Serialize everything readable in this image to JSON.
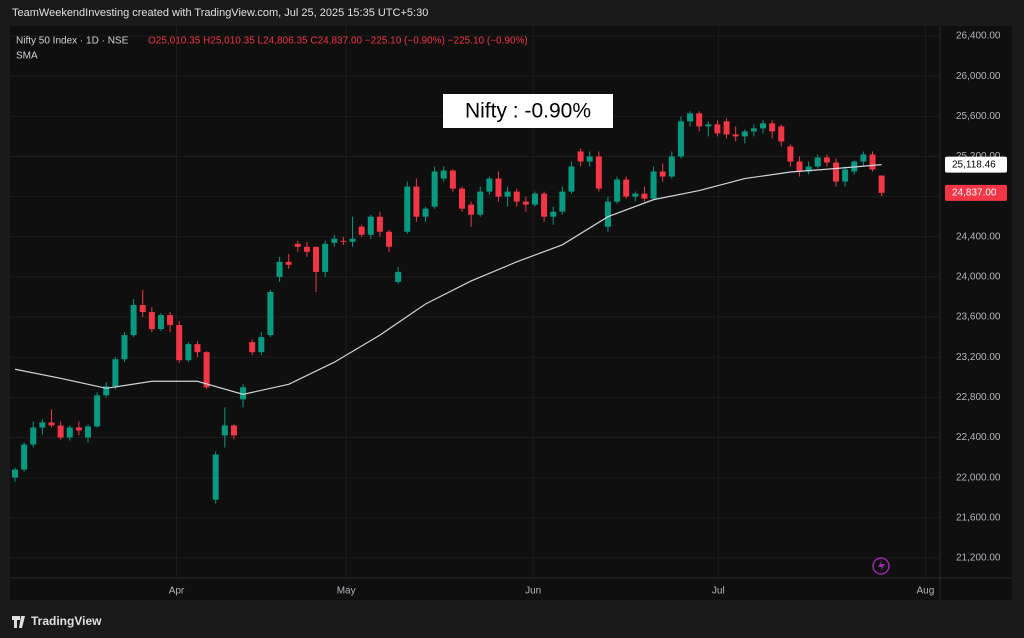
{
  "chart_data": {
    "type": "candlestick",
    "header": "TeamWeekendInvesting created with TradingView.com, Jul 25, 2025 15:35 UTC+5:30",
    "symbol": "Nifty 50 Index · 1D · NSE",
    "quote": "O25,010.35  H25,010.35  L24,806.35  C24,837.00  −225.10 (−0.90%)  −225.10 (−0.90%)",
    "indicator_name": "SMA",
    "annotation": "Nifty : -0.90%",
    "brand": "TradingView",
    "up_color": "#089981",
    "down_color": "#f23645",
    "open": [
      22000,
      22080,
      22330,
      22500,
      22550,
      22520,
      22400,
      22500,
      22400,
      22510,
      22820,
      22910,
      23180,
      23420,
      23720,
      23650,
      23480,
      23620,
      23520,
      23170,
      23330,
      23250,
      21780,
      22420,
      22520,
      22780,
      23350,
      23250,
      23420,
      24000,
      24150,
      24330,
      24300,
      24300,
      24050,
      24340,
      24360,
      24350,
      24500,
      24420,
      24600,
      24450,
      23950,
      24450,
      24900,
      24600,
      24700,
      24980,
      25060,
      24880,
      24720,
      24620,
      24850,
      24980,
      24800,
      24850,
      24750,
      24720,
      24830,
      24600,
      24650,
      24850,
      25250,
      25150,
      25200,
      24500,
      24750,
      24970,
      24800,
      24830,
      24780,
      25050,
      25000,
      25200,
      25550,
      25630,
      25500,
      25520,
      25550,
      25420,
      25400,
      25450,
      25480,
      25530,
      25500,
      25300,
      25150,
      25050,
      25100,
      25190,
      25140,
      24950,
      25050,
      25150,
      25220,
      25010
    ],
    "high": [
      22100,
      22350,
      22560,
      22580,
      22680,
      22560,
      22520,
      22560,
      22530,
      22850,
      22950,
      23200,
      23450,
      23780,
      23870,
      23700,
      23640,
      23650,
      23560,
      23350,
      23360,
      23260,
      22260,
      22700,
      22530,
      22930,
      23380,
      23450,
      23870,
      24200,
      24230,
      24360,
      24350,
      24300,
      24360,
      24420,
      24400,
      24600,
      24520,
      24620,
      24650,
      24470,
      24100,
      24950,
      24980,
      24700,
      25100,
      25100,
      25070,
      24900,
      24750,
      24900,
      25000,
      25050,
      24900,
      24880,
      24800,
      24850,
      24850,
      24700,
      24900,
      25150,
      25280,
      25250,
      25250,
      24800,
      25000,
      25000,
      24850,
      24900,
      25100,
      25130,
      25250,
      25600,
      25650,
      25650,
      25550,
      25560,
      25580,
      25500,
      25470,
      25520,
      25560,
      25560,
      25520,
      25320,
      25200,
      25150,
      25220,
      25220,
      25180,
      25100,
      25160,
      25250,
      25250,
      25010
    ],
    "low": [
      21960,
      22060,
      22300,
      22430,
      22500,
      22380,
      22370,
      22420,
      22350,
      22500,
      22800,
      22880,
      23150,
      23400,
      23600,
      23450,
      23460,
      23450,
      23140,
      23150,
      23200,
      22880,
      21740,
      22300,
      22380,
      22700,
      23220,
      23220,
      23400,
      23950,
      24080,
      24250,
      24200,
      23850,
      24000,
      24300,
      24320,
      24300,
      24400,
      24380,
      24400,
      24250,
      23930,
      24430,
      24550,
      24550,
      24680,
      24950,
      24850,
      24650,
      24500,
      24600,
      24820,
      24750,
      24700,
      24700,
      24650,
      24700,
      24550,
      24520,
      24620,
      24830,
      25100,
      25100,
      24850,
      24450,
      24730,
      24780,
      24750,
      24750,
      24760,
      24950,
      24980,
      25180,
      25500,
      25450,
      25400,
      25400,
      25380,
      25350,
      25330,
      25400,
      25430,
      25380,
      25300,
      25100,
      25000,
      25020,
      25080,
      25100,
      24900,
      24900,
      25020,
      25100,
      25050,
      24806.35
    ],
    "close": [
      22080,
      22330,
      22500,
      22550,
      22520,
      22400,
      22500,
      22470,
      22510,
      22820,
      22910,
      23180,
      23420,
      23720,
      23650,
      23480,
      23620,
      23520,
      23170,
      23330,
      23250,
      22900,
      22230,
      22520,
      22420,
      22900,
      23250,
      23400,
      23850,
      24150,
      24120,
      24300,
      24250,
      24050,
      24330,
      24380,
      24350,
      24380,
      24420,
      24600,
      24450,
      24300,
      24050,
      24900,
      24600,
      24680,
      25050,
      25060,
      24880,
      24680,
      24620,
      24850,
      24980,
      24800,
      24850,
      24750,
      24720,
      24830,
      24600,
      24650,
      24850,
      25100,
      25150,
      25200,
      24880,
      24750,
      24970,
      24800,
      24830,
      24780,
      25050,
      25000,
      25200,
      25550,
      25630,
      25500,
      25520,
      25430,
      25420,
      25400,
      25450,
      25480,
      25530,
      25450,
      25350,
      25150,
      25050,
      25100,
      25190,
      25140,
      24950,
      25070,
      25150,
      25220,
      25070,
      24837
    ],
    "sma": {
      "name": "SMA",
      "color": "#d1d4dc",
      "x": [
        0,
        5,
        10,
        15,
        20,
        25,
        30,
        35,
        40,
        45,
        50,
        55,
        60,
        65,
        70,
        75,
        80,
        85,
        90,
        95
      ],
      "values": [
        23080,
        22990,
        22890,
        22960,
        22960,
        22830,
        22930,
        23150,
        23420,
        23730,
        23960,
        24150,
        24320,
        24600,
        24770,
        24860,
        24980,
        25045,
        25080,
        25118.46
      ]
    },
    "price_labels": [
      {
        "value": 25118.46,
        "label": "25,118.46",
        "color": "#ffffff"
      },
      {
        "value": 24837,
        "label": "24,837.00",
        "color": "#f23645"
      }
    ],
    "xlim": [
      -0.55,
      101.4
    ],
    "xticks": [
      {
        "value": 17.7,
        "label": "Apr"
      },
      {
        "value": 36.3,
        "label": "May"
      },
      {
        "value": 56.8,
        "label": "Jun"
      },
      {
        "value": 77.1,
        "label": "Jul"
      },
      {
        "value": 99.8,
        "label": "Aug"
      }
    ],
    "ylim": [
      21000,
      26500
    ],
    "yticks": [
      {
        "value": 21200,
        "label": "21,200.00"
      },
      {
        "value": 21600,
        "label": "21,600.00"
      },
      {
        "value": 22000,
        "label": "22,000.00"
      },
      {
        "value": 22400,
        "label": "22,400.00"
      },
      {
        "value": 22800,
        "label": "22,800.00"
      },
      {
        "value": 23200,
        "label": "23,200.00"
      },
      {
        "value": 23600,
        "label": "23,600.00"
      },
      {
        "value": 24000,
        "label": "24,000.00"
      },
      {
        "value": 24400,
        "label": "24,400.00"
      },
      {
        "value": 24800,
        "label": "24,800.00"
      },
      {
        "value": 25200,
        "label": "25,200.00"
      },
      {
        "value": 25600,
        "label": "25,600.00"
      },
      {
        "value": 26000,
        "label": "26,000.00"
      },
      {
        "value": 26400,
        "label": "26,400.00"
      }
    ],
    "grid": true
  }
}
